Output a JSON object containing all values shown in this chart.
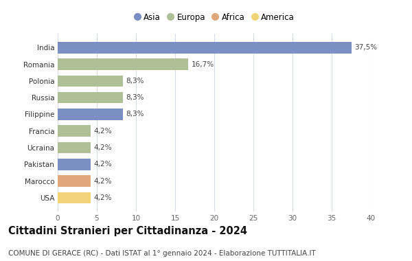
{
  "countries": [
    "India",
    "Romania",
    "Polonia",
    "Russia",
    "Filippine",
    "Francia",
    "Ucraina",
    "Pakistan",
    "Marocco",
    "USA"
  ],
  "values": [
    37.5,
    16.7,
    8.3,
    8.3,
    8.3,
    4.2,
    4.2,
    4.2,
    4.2,
    4.2
  ],
  "labels": [
    "37,5%",
    "16,7%",
    "8,3%",
    "8,3%",
    "8,3%",
    "4,2%",
    "4,2%",
    "4,2%",
    "4,2%",
    "4,2%"
  ],
  "colors": [
    "#7b8fc4",
    "#afc096",
    "#afc096",
    "#afc096",
    "#7b8fc4",
    "#afc096",
    "#afc096",
    "#7b8fc4",
    "#e0a87a",
    "#f2d478"
  ],
  "continent_labels": [
    "Asia",
    "Europa",
    "Africa",
    "America"
  ],
  "continent_colors": [
    "#7b8fc4",
    "#afc096",
    "#e0a87a",
    "#f2d478"
  ],
  "title": "Cittadini Stranieri per Cittadinanza - 2024",
  "subtitle": "COMUNE DI GERACE (RC) - Dati ISTAT al 1° gennaio 2024 - Elaborazione TUTTITALIA.IT",
  "xlim": [
    0,
    40
  ],
  "xticks": [
    0,
    5,
    10,
    15,
    20,
    25,
    30,
    35,
    40
  ],
  "bg_color": "#ffffff",
  "grid_color": "#d8dce8",
  "bar_height": 0.68,
  "title_fontsize": 10.5,
  "subtitle_fontsize": 7.5,
  "label_fontsize": 7.5,
  "tick_fontsize": 7.5,
  "legend_fontsize": 8.5
}
